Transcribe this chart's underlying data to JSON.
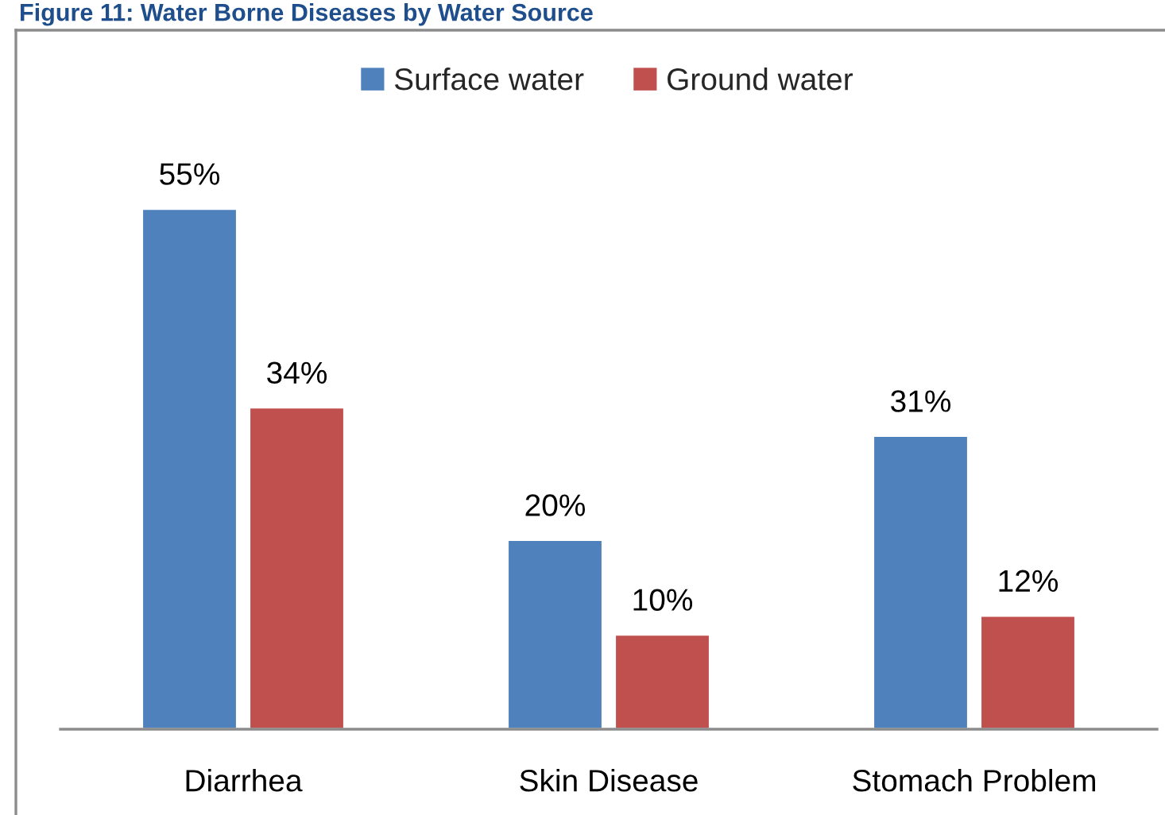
{
  "chart_data": {
    "type": "bar",
    "title": "Figure 11: Water Borne Diseases by Water Source",
    "categories": [
      "Diarrhea",
      "Skin Disease",
      "Stomach Problem"
    ],
    "series": [
      {
        "name": "Surface water",
        "color": "#4f81bd",
        "values": [
          55,
          20,
          31
        ],
        "value_labels": [
          "55%",
          "20%",
          "31%"
        ]
      },
      {
        "name": "Ground water",
        "color": "#c0504d",
        "values": [
          34,
          10,
          12
        ],
        "value_labels": [
          "34%",
          "10%",
          "12%"
        ]
      }
    ],
    "legend": "top",
    "tick_labels": "x"
  }
}
